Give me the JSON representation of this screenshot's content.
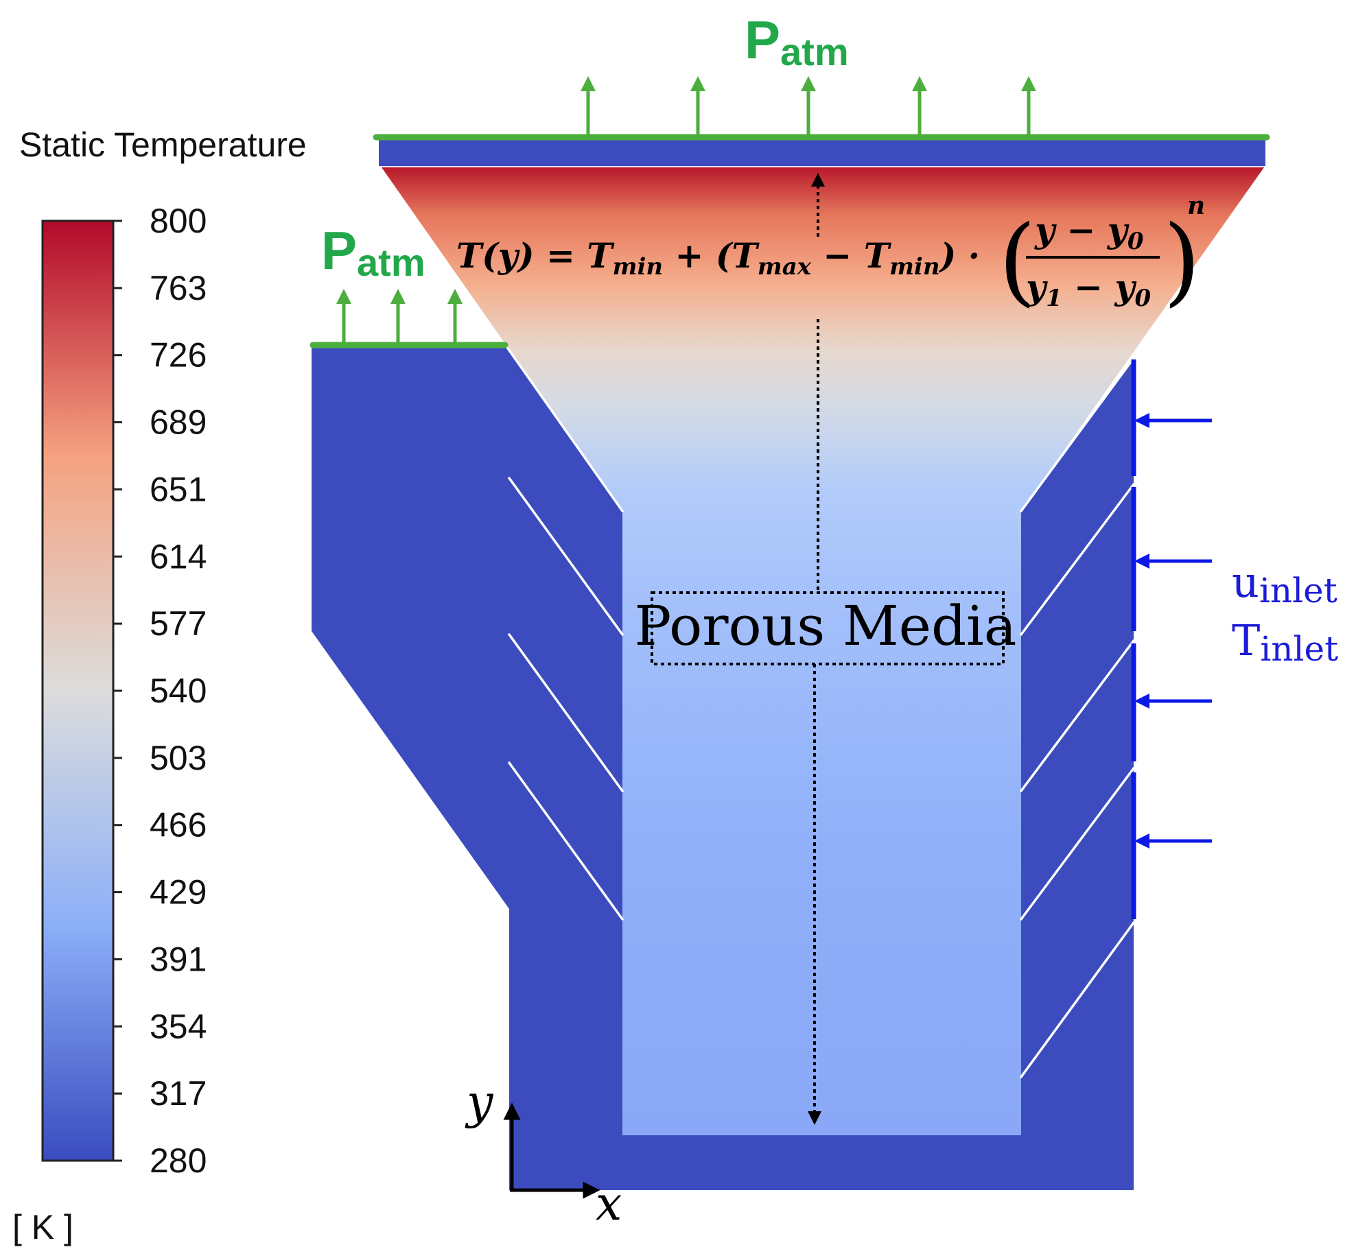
{
  "legend": {
    "title": "Static Temperature",
    "unit": "[ K ]",
    "ticks": [
      "800",
      "763",
      "726",
      "689",
      "651",
      "614",
      "577",
      "540",
      "503",
      "466",
      "429",
      "391",
      "354",
      "317",
      "280"
    ],
    "min": 280,
    "max": 800,
    "colormap": [
      "#3a4cc0",
      "#8caff8",
      "#dcdcdc",
      "#f5a280",
      "#b2092a"
    ]
  },
  "labels": {
    "patm_main": "P",
    "patm_sub": "atm",
    "u_main": "u",
    "u_sub": "inlet",
    "t_main": "T",
    "t_sub": "inlet",
    "porous": "Porous Media",
    "axis_x": "x",
    "axis_y": "y"
  },
  "equation": {
    "lhs": "T(y) = ",
    "t": "T",
    "min": "min",
    "max": "max",
    "plus": " + (",
    "minus": " − ",
    "close_dot": ") · ",
    "y": "y",
    "y0_sub": "0",
    "y1_sub": "1",
    "exponent": "n",
    "open_paren": "(",
    "close_paren": ")"
  },
  "colors": {
    "solid": "#3c4cbf",
    "porous_low": "#8caaf8",
    "outlet": "#4cae3c",
    "inlet": "#0b19e6",
    "label_green": "#22a84a",
    "label_blue": "#1b1bd8"
  }
}
